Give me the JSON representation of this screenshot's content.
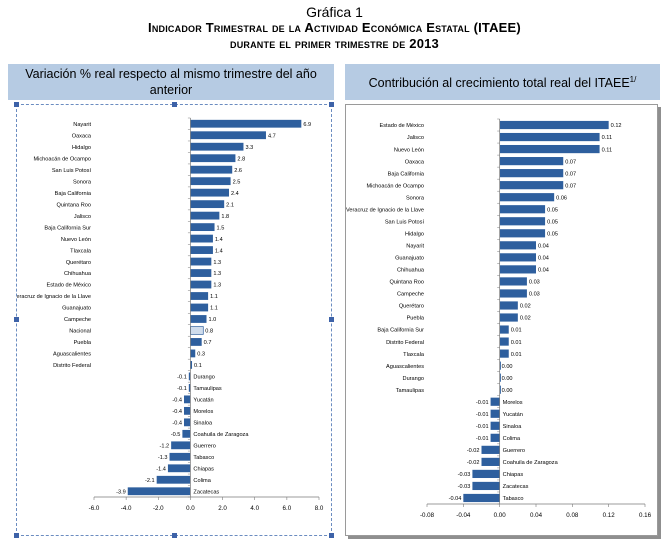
{
  "header": {
    "figure_label": "Gráfica 1",
    "title_line1": "Indicador Trimestral de la Actividad Económica Estatal (ITAEE)",
    "title_line2": "durante el primer trimestre de 2013"
  },
  "panels": {
    "left_title": "Variación % real respecto al mismo trimestre del año anterior",
    "right_title": "Contribución al crecimiento total real del ITAEE",
    "right_title_sup": "1/"
  },
  "colors": {
    "bar": "#2e5f9e",
    "bar_highlight": "#cfdcec",
    "header_band": "#b6cbe3"
  },
  "chart_data": [
    {
      "type": "bar",
      "orientation": "horizontal",
      "title": "Variación % real respecto al mismo trimestre del año anterior",
      "categories": [
        "Nayarit",
        "Oaxaca",
        "Hidalgo",
        "Michoacán de Ocampo",
        "San Luis Potosí",
        "Sonora",
        "Baja California",
        "Quintana Roo",
        "Jalisco",
        "Baja California Sur",
        "Nuevo León",
        "Tlaxcala",
        "Querétaro",
        "Chihuahua",
        "Estado de México",
        "Veracruz de Ignacio de la Llave",
        "Guanajuato",
        "Campeche",
        "Nacional",
        "Puebla",
        "Aguascalientes",
        "Distrito Federal",
        "Durango",
        "Tamaulipas",
        "Yucatán",
        "Morelos",
        "Sinaloa",
        "Coahuila de Zaragoza",
        "Guerrero",
        "Tabasco",
        "Chiapas",
        "Colima",
        "Zacatecas"
      ],
      "values": [
        6.9,
        4.7,
        3.3,
        2.8,
        2.6,
        2.5,
        2.4,
        2.1,
        1.8,
        1.5,
        1.4,
        1.4,
        1.3,
        1.3,
        1.3,
        1.1,
        1.1,
        1.0,
        0.8,
        0.7,
        0.3,
        0.1,
        -0.1,
        -0.1,
        -0.4,
        -0.4,
        -0.4,
        -0.5,
        -1.2,
        -1.3,
        -1.4,
        -2.1,
        -3.9
      ],
      "data_labels": [
        "6.9",
        "4.7",
        "3.3",
        "2.8",
        "2.6",
        "2.5",
        "2.4",
        "2.1",
        "1.8",
        "1.5",
        "1.4",
        "1.4",
        "1.3",
        "1.3",
        "1.3",
        "1.1",
        "1.1",
        "1.0",
        "0.8",
        "0.7",
        "0.3",
        "0.1",
        "-0.1",
        "-0.1",
        "-0.4",
        "-0.4",
        "-0.4",
        "-0.5",
        "-1.2",
        "-1.3",
        "-1.4",
        "-2.1",
        "-3.9"
      ],
      "highlight": "Nacional",
      "xlim": [
        -6.0,
        8.0
      ],
      "xticks": [
        "-6.0",
        "-4.0",
        "-2.0",
        "0.0",
        "2.0",
        "4.0",
        "6.0",
        "8.0"
      ],
      "grid": false
    },
    {
      "type": "bar",
      "orientation": "horizontal",
      "title": "Contribución al crecimiento total real del ITAEE",
      "categories": [
        "Estado de México",
        "Jalisco",
        "Nuevo León",
        "Oaxaca",
        "Baja California",
        "Michoacán de Ocampo",
        "Sonora",
        "Veracruz de Ignacio de la Llave",
        "San Luis Potosí",
        "Hidalgo",
        "Nayarit",
        "Guanajuato",
        "Chihuahua",
        "Quintana Roo",
        "Campeche",
        "Querétaro",
        "Puebla",
        "Baja California Sur",
        "Distrito Federal",
        "Tlaxcala",
        "Aguascalientes",
        "Durango",
        "Tamaulipas",
        "Morelos",
        "Yucatán",
        "Sinaloa",
        "Colima",
        "Guerrero",
        "Coahuila de Zaragoza",
        "Chiapas",
        "Zacatecas",
        "Tabasco"
      ],
      "values": [
        0.12,
        0.11,
        0.11,
        0.07,
        0.07,
        0.07,
        0.06,
        0.05,
        0.05,
        0.05,
        0.04,
        0.04,
        0.04,
        0.03,
        0.03,
        0.02,
        0.02,
        0.01,
        0.01,
        0.01,
        0.0,
        0.0,
        0.0,
        -0.01,
        -0.01,
        -0.01,
        -0.01,
        -0.02,
        -0.02,
        -0.03,
        -0.03,
        -0.04
      ],
      "data_labels": [
        "0.12",
        "0.11",
        "0.11",
        "0.07",
        "0.07",
        "0.07",
        "0.06",
        "0.05",
        "0.05",
        "0.05",
        "0.04",
        "0.04",
        "0.04",
        "0.03",
        "0.03",
        "0.02",
        "0.02",
        "0.01",
        "0.01",
        "0.01",
        "0.00",
        "0.00",
        "0.00",
        "-0.01",
        "-0.01",
        "-0.01",
        "-0.01",
        "-0.02",
        "-0.02",
        "-0.03",
        "-0.03",
        "-0.04"
      ],
      "xlim": [
        -0.08,
        0.16
      ],
      "xticks": [
        "-0.08",
        "-0.04",
        "0.00",
        "0.04",
        "0.08",
        "0.12",
        "0.16"
      ],
      "grid": false
    }
  ]
}
